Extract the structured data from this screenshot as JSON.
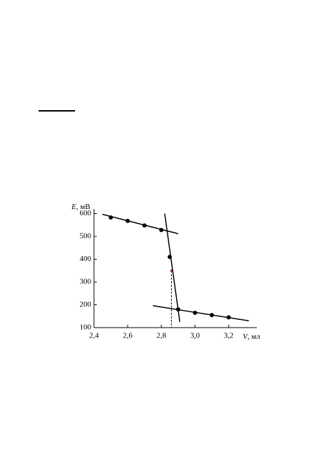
{
  "chart_data": {
    "type": "scatter",
    "ylabel": {
      "symbol": "E",
      "unit": ", мВ"
    },
    "xlabel": {
      "symbol": "V",
      "unit": ", мл"
    },
    "xlim": [
      2.4,
      3.367
    ],
    "ylim": [
      100,
      620
    ],
    "xticks": [
      {
        "value": 2.4,
        "label": "2,4"
      },
      {
        "value": 2.6,
        "label": "2,6"
      },
      {
        "value": 2.8,
        "label": "2,8"
      },
      {
        "value": 3.0,
        "label": "3,0"
      },
      {
        "value": 3.2,
        "label": "3,2"
      }
    ],
    "yticks": [
      100,
      200,
      300,
      400,
      500,
      600
    ],
    "series": [
      {
        "color": "#000000",
        "x": [
          2.5,
          2.6,
          2.7,
          2.8,
          2.85,
          2.9,
          3.0,
          3.1,
          3.2
        ],
        "values": [
          583,
          568,
          548,
          528,
          410,
          180,
          165,
          155,
          145
        ]
      }
    ],
    "fit_lines": [
      {
        "x": [
          2.45,
          2.9
        ],
        "values": [
          597,
          512
        ]
      },
      {
        "x": [
          2.82,
          2.91
        ],
        "values": [
          600,
          125
        ]
      },
      {
        "x": [
          2.75,
          3.32
        ],
        "values": [
          196,
          130
        ]
      }
    ],
    "equivalence_point": {
      "x": 2.86,
      "value": 350,
      "color": "#c00000"
    }
  }
}
